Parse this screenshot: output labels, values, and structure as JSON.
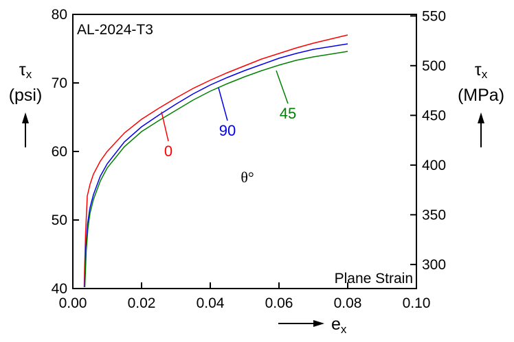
{
  "chart_data": {
    "type": "line",
    "title": "AL-2024-T3",
    "corner_note": "Plane Strain",
    "angle_label": "θ°",
    "xaxis": {
      "label_symbol": "e",
      "label_sub": "x",
      "range": [
        0,
        0.1
      ],
      "ticks": [
        "0.00",
        "0.02",
        "0.04",
        "0.06",
        "0.08",
        "0.10"
      ]
    },
    "yaxis_left": {
      "symbol": "τ",
      "sub": "x",
      "unit": "(psi)",
      "range": [
        40,
        80
      ],
      "ticks": [
        "40",
        "50",
        "60",
        "70",
        "80"
      ]
    },
    "yaxis_right": {
      "symbol": "τ",
      "sub": "x",
      "unit": "(MPa)",
      "ticks": [
        "300",
        "350",
        "400",
        "450",
        "500",
        "550"
      ]
    },
    "grid": false,
    "series": [
      {
        "name": "0",
        "color": "#ff0000",
        "x": [
          0.0033,
          0.0037,
          0.0042,
          0.005,
          0.006,
          0.008,
          0.01,
          0.015,
          0.02,
          0.025,
          0.03,
          0.035,
          0.04,
          0.045,
          0.05,
          0.055,
          0.06,
          0.065,
          0.07,
          0.075,
          0.08
        ],
        "y": [
          40.2,
          48.0,
          53.5,
          55.2,
          56.7,
          58.6,
          60.0,
          62.7,
          64.7,
          66.3,
          67.8,
          69.2,
          70.4,
          71.5,
          72.5,
          73.5,
          74.3,
          75.1,
          75.8,
          76.4,
          77.0
        ]
      },
      {
        "name": "90",
        "color": "#0000ee",
        "x": [
          0.0034,
          0.0038,
          0.0043,
          0.005,
          0.006,
          0.008,
          0.01,
          0.015,
          0.02,
          0.025,
          0.03,
          0.035,
          0.04,
          0.045,
          0.05,
          0.055,
          0.06,
          0.065,
          0.07,
          0.075,
          0.08
        ],
        "y": [
          40.2,
          46.0,
          49.5,
          51.8,
          53.7,
          56.4,
          58.2,
          61.4,
          63.6,
          65.3,
          66.9,
          68.4,
          69.7,
          70.8,
          71.8,
          72.7,
          73.6,
          74.3,
          74.9,
          75.3,
          75.7
        ]
      },
      {
        "name": "45",
        "color": "#008000",
        "x": [
          0.0035,
          0.0039,
          0.0044,
          0.005,
          0.006,
          0.008,
          0.01,
          0.015,
          0.02,
          0.025,
          0.03,
          0.035,
          0.04,
          0.045,
          0.05,
          0.055,
          0.06,
          0.065,
          0.07,
          0.075,
          0.08
        ],
        "y": [
          40.2,
          45.5,
          48.8,
          51.0,
          53.0,
          55.7,
          57.6,
          60.7,
          62.9,
          64.5,
          66.0,
          67.5,
          68.8,
          69.9,
          70.9,
          71.8,
          72.6,
          73.3,
          73.8,
          74.2,
          74.6
        ]
      }
    ],
    "series_label_points": [
      {
        "series": "0",
        "from": [
          0.0258,
          65.8
        ]
      },
      {
        "series": "90",
        "from": [
          0.0424,
          69.3
        ]
      },
      {
        "series": "45",
        "from": [
          0.0592,
          71.8
        ]
      }
    ]
  }
}
